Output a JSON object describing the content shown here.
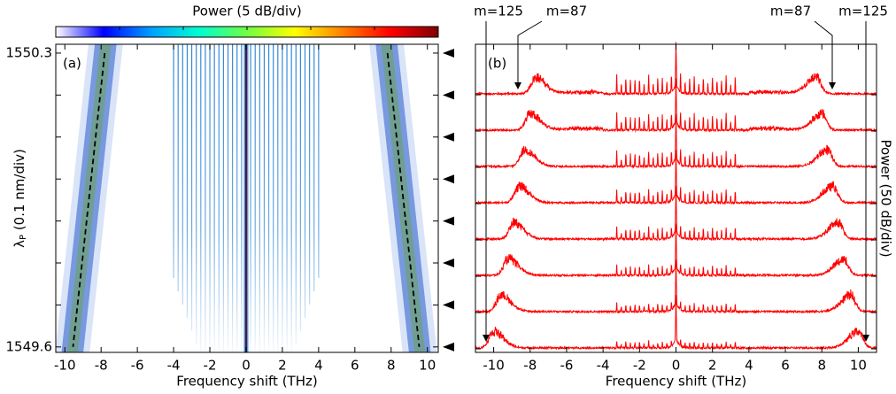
{
  "chart_data": [
    {
      "type": "heatmap",
      "label": "(a)",
      "colorbar_label": "Power (5 dB/div)",
      "colorbar_colors": [
        "#ffffff",
        "#0000ff",
        "#00a0ff",
        "#00ffd0",
        "#70ff40",
        "#ffff00",
        "#ff8000",
        "#ff0000",
        "#800000"
      ],
      "xlabel": "Frequency shift (THz)",
      "ylabel": {
        "symbol": "λ",
        "sub": "P",
        "rest": " (0.1 nm/div)"
      },
      "xlim": [
        -10.5,
        10.6
      ],
      "xticks": [
        -10,
        -8,
        -6,
        -4,
        -2,
        0,
        2,
        4,
        6,
        8,
        10
      ],
      "ylim": [
        1549.587,
        1550.321
      ],
      "yticks": [
        1549.6,
        1550.3
      ],
      "pump_wavelengths": [
        1550.3,
        1550.2,
        1550.1,
        1550.0,
        1549.9,
        1549.8,
        1549.7,
        1549.6
      ],
      "sideband_shift": [
        7.8,
        8.05,
        8.3,
        8.55,
        8.8,
        9.05,
        9.3,
        9.55
      ],
      "comb_lines": [
        -4.0,
        -3.75,
        -3.5,
        -3.25,
        -3.0,
        -2.75,
        -2.5,
        -2.25,
        -2.0,
        -1.75,
        -1.5,
        -1.25,
        -1.0,
        -0.75,
        -0.5,
        -0.25,
        0.25,
        0.5,
        0.75,
        1.0,
        1.25,
        1.5,
        1.75,
        2.0,
        2.25,
        2.5,
        2.75,
        3.0,
        3.25,
        3.5,
        3.75,
        4.0
      ],
      "band_colors": [
        "#b9cdf2",
        "#5f86d8",
        "#6e9f80"
      ],
      "pump_color": "#8b0000",
      "comb_color": "#2f86d6"
    },
    {
      "type": "spectra",
      "label": "(b)",
      "xlabel": "Frequency shift (THz)",
      "ylabel": "Power (50 dB/div)",
      "xlim": [
        -11,
        11
      ],
      "xticks": [
        -10,
        -8,
        -6,
        -4,
        -2,
        0,
        2,
        4,
        6,
        8,
        10
      ],
      "sideband_shift": [
        7.7,
        8.0,
        8.3,
        8.6,
        8.9,
        9.2,
        9.6,
        10.0
      ],
      "color": "#ff0000",
      "annotations": [
        "m=125",
        "m=87",
        "m=87",
        "m=125"
      ]
    }
  ]
}
